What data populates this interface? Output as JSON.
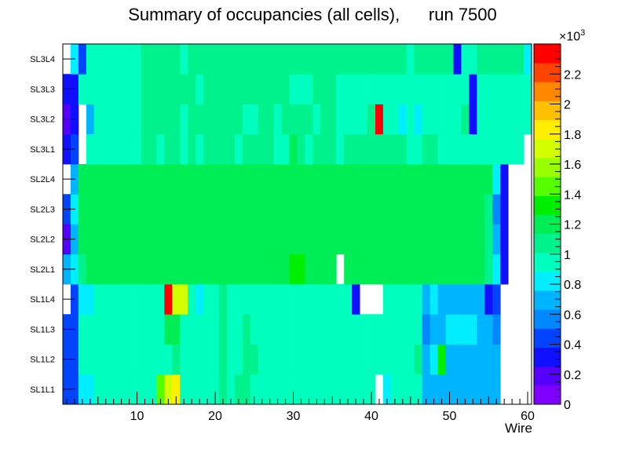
{
  "chart_data": {
    "type": "heatmap",
    "title": "Summary of occupancies (all cells),      run 7500",
    "xlabel": "Wire",
    "ylabel": "",
    "x_range": [
      0.5,
      60.5
    ],
    "x_ticks": [
      10,
      20,
      30,
      40,
      50,
      60
    ],
    "y_labels": [
      "SL1L1",
      "SL1L2",
      "SL1L3",
      "SL1L4",
      "SL2L1",
      "SL2L2",
      "SL2L3",
      "SL2L4",
      "SL3L1",
      "SL3L2",
      "SL3L3",
      "SL3L4"
    ],
    "z_range": [
      0,
      2400
    ],
    "z_ticks": [
      0,
      200,
      400,
      600,
      800,
      1000,
      1200,
      1400,
      1600,
      1800,
      2000,
      2200
    ],
    "z_tick_labels": [
      "0",
      "0.2",
      "0.4",
      "0.6",
      "0.8",
      "1",
      "1.2",
      "1.4",
      "1.6",
      "1.8",
      "2",
      "2.2"
    ],
    "z_multiplier": "×10",
    "z_exponent": "3",
    "palette": [
      "#7f00ff",
      "#5500ff",
      "#1010ff",
      "#0044ff",
      "#0088ff",
      "#00b4ff",
      "#00eeff",
      "#00ffbe",
      "#00f28c",
      "#00ee55",
      "#00ee00",
      "#55ff00",
      "#9aff00",
      "#d4ff00",
      "#ffee00",
      "#ffc000",
      "#ff8800",
      "#ff4400",
      "#ff0000"
    ],
    "rows": [
      {
        "name": "SL1L1",
        "values": [
          400,
          500,
          800,
          800,
          900,
          900,
          900,
          900,
          900,
          900,
          1000,
          1000,
          1400,
          1700,
          1800,
          1000,
          1000,
          1000,
          1000,
          1000,
          1050,
          1000,
          1050,
          1050,
          1000,
          1000,
          950,
          1000,
          1000,
          1000,
          1000,
          1000,
          950,
          950,
          950,
          950,
          1000,
          1000,
          1000,
          1000,
          0,
          850,
          1000,
          1000,
          1000,
          1000,
          700,
          700,
          700,
          700,
          700,
          650,
          650,
          650,
          650,
          650,
          0,
          0,
          0,
          0
        ]
      },
      {
        "name": "SL1L2",
        "values": [
          400,
          500,
          900,
          950,
          950,
          1000,
          1000,
          950,
          950,
          950,
          1000,
          950,
          1000,
          1000,
          1100,
          1000,
          1000,
          1000,
          1000,
          1000,
          1050,
          1000,
          1000,
          1050,
          1050,
          1000,
          950,
          1000,
          1000,
          1000,
          1000,
          1000,
          1000,
          1000,
          1000,
          1000,
          1000,
          1000,
          1000,
          1000,
          950,
          1000,
          1000,
          1000,
          1000,
          1050,
          750,
          800,
          1300,
          700,
          750,
          750,
          700,
          700,
          700,
          700,
          0,
          0,
          0,
          0
        ]
      },
      {
        "name": "SL1L3",
        "values": [
          400,
          500,
          900,
          950,
          1000,
          950,
          950,
          1000,
          1000,
          1000,
          1000,
          1000,
          1000,
          1150,
          1200,
          1000,
          1000,
          1000,
          1000,
          1000,
          1050,
          1000,
          1000,
          1050,
          1000,
          1000,
          1000,
          1000,
          1000,
          1000,
          1000,
          1000,
          1000,
          1000,
          1000,
          1000,
          1000,
          1000,
          1000,
          1000,
          950,
          950,
          950,
          950,
          950,
          950,
          600,
          700,
          750,
          800,
          800,
          800,
          800,
          750,
          750,
          600,
          0,
          0,
          0,
          0
        ]
      },
      {
        "name": "SL1L4",
        "values": [
          0,
          400,
          800,
          800,
          900,
          900,
          900,
          950,
          950,
          1000,
          1000,
          1000,
          1000,
          2300,
          1650,
          1650,
          1000,
          850,
          1000,
          1000,
          1050,
          1000,
          1000,
          1000,
          1000,
          1000,
          1000,
          1000,
          1000,
          1000,
          1000,
          1000,
          1000,
          1000,
          1000,
          1000,
          950,
          300,
          0,
          0,
          0,
          950,
          950,
          950,
          950,
          950,
          750,
          800,
          700,
          700,
          750,
          750,
          750,
          750,
          300,
          450,
          0,
          0,
          0,
          0
        ]
      },
      {
        "name": "SL2L1",
        "values": [
          700,
          800,
          1100,
          1200,
          1200,
          1150,
          1150,
          1200,
          1200,
          1200,
          1150,
          1150,
          1200,
          1200,
          1200,
          1200,
          1200,
          1200,
          1200,
          1200,
          1200,
          1250,
          1250,
          1200,
          1200,
          1200,
          1250,
          1250,
          1250,
          1300,
          1300,
          1250,
          1250,
          1250,
          1250,
          0,
          1200,
          1200,
          1200,
          1200,
          1200,
          1200,
          1200,
          1200,
          1200,
          1200,
          1200,
          1200,
          1200,
          1200,
          1200,
          1150,
          1150,
          1150,
          1050,
          800,
          300,
          0,
          0,
          0
        ]
      },
      {
        "name": "SL2L2",
        "values": [
          250,
          700,
          1150,
          1200,
          1250,
          1250,
          1250,
          1200,
          1200,
          1200,
          1200,
          1200,
          1200,
          1250,
          1250,
          1250,
          1250,
          1250,
          1250,
          1250,
          1250,
          1250,
          1250,
          1250,
          1250,
          1250,
          1250,
          1250,
          1250,
          1250,
          1250,
          1250,
          1250,
          1250,
          1200,
          1150,
          1200,
          1200,
          1200,
          1200,
          1200,
          1200,
          1200,
          1200,
          1200,
          1200,
          1200,
          1200,
          1200,
          1150,
          1200,
          1200,
          1200,
          1150,
          1100,
          650,
          300,
          0,
          0,
          0
        ]
      },
      {
        "name": "SL2L3",
        "values": [
          400,
          800,
          1150,
          1150,
          1150,
          1200,
          1200,
          1200,
          1200,
          1200,
          1200,
          1200,
          1200,
          1200,
          1150,
          1200,
          1200,
          1200,
          1200,
          1200,
          1200,
          1200,
          1200,
          1200,
          1250,
          1250,
          1250,
          1200,
          1200,
          1200,
          1200,
          1200,
          1200,
          1200,
          1200,
          1200,
          1200,
          1200,
          1200,
          1150,
          1150,
          1200,
          1200,
          1200,
          1200,
          1200,
          1200,
          1200,
          1200,
          1200,
          1200,
          1150,
          1200,
          1150,
          1100,
          600,
          300,
          0,
          0,
          0
        ]
      },
      {
        "name": "SL2L4",
        "values": [
          0,
          700,
          1150,
          1200,
          1150,
          1200,
          1200,
          1200,
          1200,
          1200,
          1200,
          1250,
          1250,
          1250,
          1250,
          1250,
          1250,
          1250,
          1250,
          1250,
          1250,
          1250,
          1250,
          1250,
          1250,
          1250,
          1250,
          1250,
          1250,
          1250,
          1250,
          1250,
          1250,
          1250,
          1250,
          1250,
          1250,
          1250,
          1250,
          1250,
          1200,
          1250,
          1250,
          1250,
          1250,
          1250,
          1250,
          1250,
          1250,
          1250,
          1250,
          1200,
          1200,
          1200,
          1200,
          850,
          300,
          0,
          0,
          0
        ]
      },
      {
        "name": "SL3L1",
        "values": [
          300,
          400,
          0,
          1000,
          1000,
          1000,
          1000,
          1000,
          1000,
          1000,
          1050,
          1050,
          1000,
          1050,
          1050,
          1000,
          1100,
          1000,
          1050,
          1050,
          1050,
          1050,
          1000,
          1050,
          1050,
          1050,
          1050,
          1000,
          1000,
          1150,
          1050,
          1000,
          1050,
          1050,
          1050,
          1000,
          1050,
          1050,
          1050,
          1100,
          1050,
          1050,
          1050,
          1100,
          1000,
          1000,
          1050,
          1050,
          1000,
          1000,
          1000,
          1000,
          1000,
          1000,
          1000,
          1000,
          1000,
          1000,
          1000,
          0
        ]
      },
      {
        "name": "SL3L2",
        "values": [
          150,
          300,
          0,
          750,
          1000,
          1000,
          1000,
          1000,
          1000,
          1000,
          1050,
          1050,
          1050,
          1050,
          1050,
          1000,
          1050,
          1050,
          1050,
          1050,
          1050,
          1050,
          1050,
          1000,
          1000,
          1050,
          1050,
          1000,
          1050,
          1050,
          1050,
          1050,
          1000,
          1050,
          1050,
          1000,
          1000,
          1000,
          1000,
          1050,
          2400,
          1000,
          1000,
          850,
          1000,
          850,
          1000,
          1000,
          1000,
          1000,
          1000,
          1050,
          300,
          1000,
          1000,
          1000,
          1000,
          1000,
          1000,
          1000
        ]
      },
      {
        "name": "SL3L3",
        "values": [
          300,
          300,
          900,
          1000,
          1000,
          1000,
          1000,
          1000,
          1000,
          1000,
          1050,
          1050,
          1050,
          1050,
          1050,
          1050,
          1050,
          1000,
          1050,
          1050,
          1050,
          1050,
          1050,
          1050,
          1050,
          1050,
          1050,
          1050,
          1050,
          1000,
          1000,
          1000,
          1050,
          1050,
          1050,
          1000,
          1000,
          1000,
          1000,
          1000,
          1000,
          1000,
          1000,
          1000,
          950,
          1000,
          1000,
          1000,
          1000,
          1000,
          1000,
          1000,
          300,
          1000,
          1000,
          1000,
          1000,
          1000,
          950,
          950
        ]
      },
      {
        "name": "SL3L4",
        "values": [
          0,
          850,
          400,
          1000,
          1000,
          1000,
          1000,
          1000,
          1000,
          1000,
          1050,
          1050,
          1050,
          1050,
          1050,
          1000,
          1050,
          1050,
          1100,
          1050,
          1050,
          1050,
          1050,
          1050,
          1050,
          1050,
          1050,
          1050,
          1050,
          1050,
          1100,
          1050,
          1050,
          1050,
          1050,
          1050,
          1050,
          1050,
          1050,
          1050,
          1100,
          1050,
          1050,
          1050,
          900,
          1050,
          1050,
          1050,
          1050,
          1050,
          300,
          900,
          1000,
          1050,
          1050,
          1050,
          1050,
          1050,
          1050,
          800
        ]
      }
    ]
  }
}
